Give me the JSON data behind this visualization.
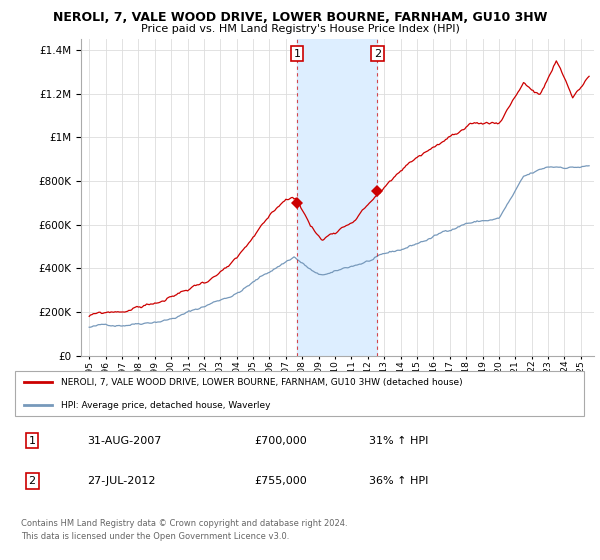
{
  "title": "NEROLI, 7, VALE WOOD DRIVE, LOWER BOURNE, FARNHAM, GU10 3HW",
  "subtitle": "Price paid vs. HM Land Registry's House Price Index (HPI)",
  "legend_line1": "NEROLI, 7, VALE WOOD DRIVE, LOWER BOURNE, FARNHAM, GU10 3HW (detached house)",
  "legend_line2": "HPI: Average price, detached house, Waverley",
  "sale1_date": "31-AUG-2007",
  "sale1_price": "£700,000",
  "sale1_hpi": "31% ↑ HPI",
  "sale2_date": "27-JUL-2012",
  "sale2_price": "£755,000",
  "sale2_hpi": "36% ↑ HPI",
  "footnote1": "Contains HM Land Registry data © Crown copyright and database right 2024.",
  "footnote2": "This data is licensed under the Open Government Licence v3.0.",
  "sale1_year": 2007.67,
  "sale2_year": 2012.58,
  "sale1_value": 700000,
  "sale2_value": 755000,
  "red_color": "#cc0000",
  "blue_color": "#7799bb",
  "shade_color": "#ddeeff",
  "ylim_min": 0,
  "ylim_max": 1450000,
  "xlim_min": 1994.5,
  "xlim_max": 2025.8
}
